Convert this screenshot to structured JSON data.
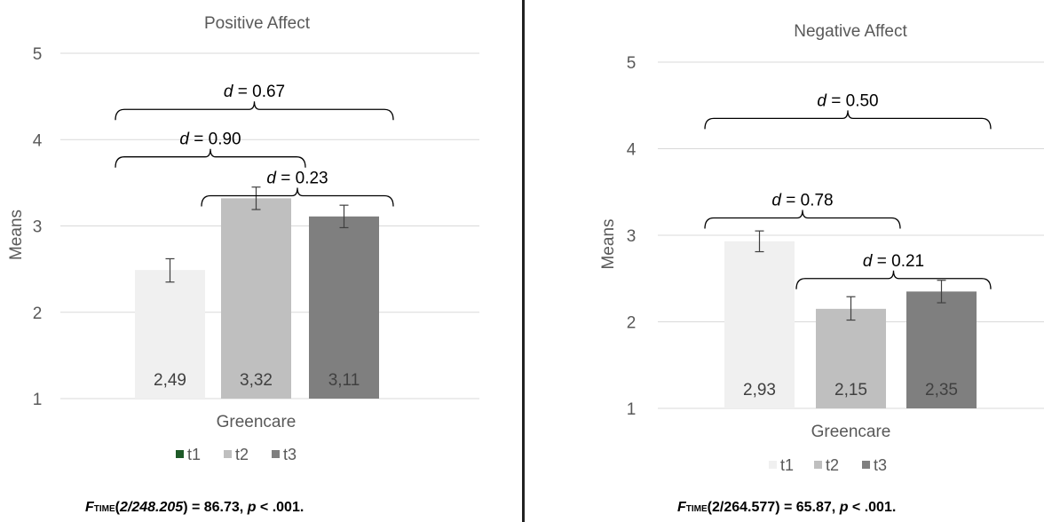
{
  "chart_data": [
    {
      "type": "bar",
      "title": "Positive Affect",
      "ylabel": "Means",
      "xlabel": "Greencare",
      "ylim": [
        1,
        5
      ],
      "yticks": [
        "1",
        "2",
        "3",
        "4",
        "5"
      ],
      "category": "Greencare",
      "series": [
        {
          "name": "t1",
          "value": 2.49,
          "label": "2,49",
          "err_low": 2.35,
          "err_high": 2.62,
          "color": "#f0f0f0",
          "legend_color": "#1e5a28"
        },
        {
          "name": "t2",
          "value": 3.32,
          "label": "3,32",
          "err_low": 3.19,
          "err_high": 3.45,
          "color": "#bfbfbf",
          "legend_color": "#bfbfbf"
        },
        {
          "name": "t3",
          "value": 3.11,
          "label": "3,11",
          "err_low": 2.98,
          "err_high": 3.24,
          "color": "#7f7f7f",
          "legend_color": "#7f7f7f"
        }
      ],
      "brackets": [
        {
          "from": 0,
          "to": 2,
          "y": 4.35,
          "d_label": "d",
          "d_value": "= 0.67"
        },
        {
          "from": 0,
          "to": 1,
          "y": 3.8,
          "d_label": "d",
          "d_value": "= 0.90"
        },
        {
          "from": 1,
          "to": 2,
          "y": 3.35,
          "d_label": "d",
          "d_value": "= 0.23"
        }
      ],
      "formula": {
        "F": "F",
        "sub": "TIME",
        "args": "2/248.205",
        "rest": ") = 86.73, ",
        "p": "p",
        "prest": " < .001."
      },
      "grid": true,
      "legend": "bottom"
    },
    {
      "type": "bar",
      "title": "Negative Affect",
      "ylabel": "Means",
      "xlabel": "Greencare",
      "ylim": [
        1,
        5
      ],
      "yticks": [
        "1",
        "2",
        "3",
        "4",
        "5"
      ],
      "category": "Greencare",
      "series": [
        {
          "name": "t1",
          "value": 2.93,
          "label": "2,93",
          "err_low": 2.81,
          "err_high": 3.05,
          "color": "#f0f0f0",
          "legend_color": "#f0f0f0"
        },
        {
          "name": "t2",
          "value": 2.15,
          "label": "2,15",
          "err_low": 2.02,
          "err_high": 2.29,
          "color": "#bfbfbf",
          "legend_color": "#bfbfbf"
        },
        {
          "name": "t3",
          "value": 2.35,
          "label": "2,35",
          "err_low": 2.22,
          "err_high": 2.48,
          "color": "#7f7f7f",
          "legend_color": "#7f7f7f"
        }
      ],
      "brackets": [
        {
          "from": 0,
          "to": 2,
          "y": 4.35,
          "d_label": "d",
          "d_value": "= 0.50"
        },
        {
          "from": 0,
          "to": 1,
          "y": 3.2,
          "d_label": "d",
          "d_value": "= 0.78"
        },
        {
          "from": 1,
          "to": 2,
          "y": 2.5,
          "d_label": "d",
          "d_value": "= 0.21"
        }
      ],
      "formula": {
        "F": "F",
        "sub": "TIME",
        "args": "2/264.577",
        "rest": ") = 65.87, ",
        "p": "p",
        "prest": " < .001."
      },
      "grid": true,
      "legend": "bottom"
    }
  ]
}
